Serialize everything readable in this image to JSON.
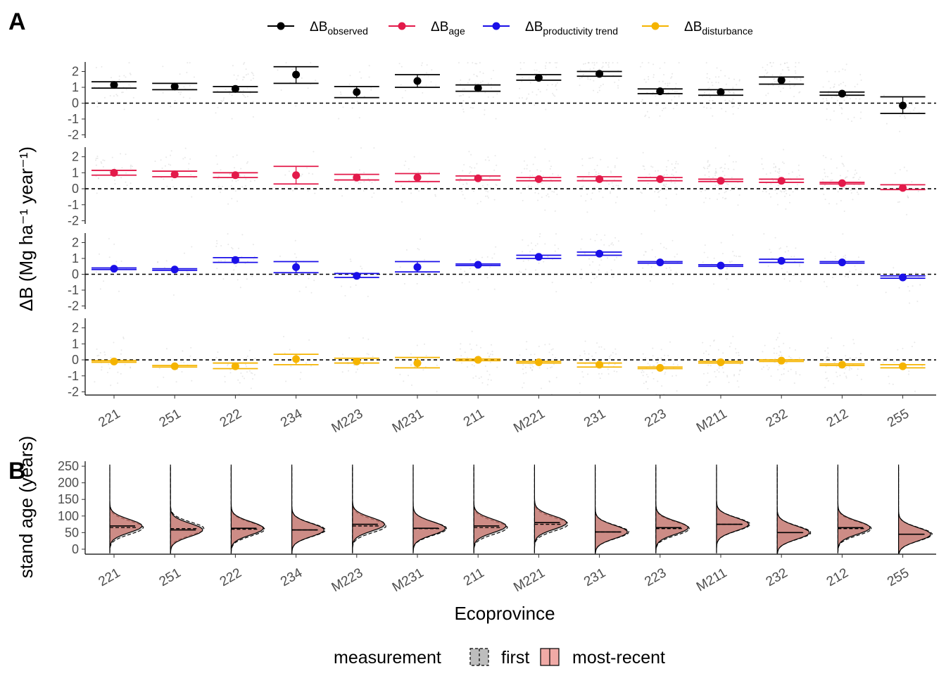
{
  "panel_a_label": "A",
  "panel_b_label": "B",
  "legend_a": [
    {
      "main": "ΔB",
      "sub": "observed",
      "color": "#000000"
    },
    {
      "main": "ΔB",
      "sub": "age",
      "color": "#e31a4a"
    },
    {
      "main": "ΔB",
      "sub": "productivity trend",
      "color": "#1a0fe8"
    },
    {
      "main": "ΔB",
      "sub": "disturbance",
      "color": "#f5b400"
    }
  ],
  "legend_b": {
    "title": "measurement",
    "items": [
      {
        "label": "first",
        "fill": "#bdbdbd",
        "linestyle": "dashed"
      },
      {
        "label": "most-recent",
        "fill": "#f0aaa6",
        "linestyle": "solid"
      }
    ]
  },
  "chart_data": [
    {
      "type": "scatter",
      "panel": "A",
      "ylabel": "ΔB (Mg ha⁻¹ year⁻¹)",
      "categories": [
        "221",
        "251",
        "222",
        "234",
        "M223",
        "M231",
        "211",
        "M221",
        "231",
        "223",
        "M211",
        "232",
        "212",
        "255"
      ],
      "ylim": [
        -2.2,
        2.6
      ],
      "yticks": [
        -2,
        -1,
        0,
        1,
        2
      ],
      "reference_line": 0,
      "series": [
        {
          "name": "ΔB observed",
          "color": "#000000",
          "values": [
            1.15,
            1.05,
            0.9,
            1.8,
            0.7,
            1.4,
            0.95,
            1.6,
            1.85,
            0.75,
            0.7,
            1.45,
            0.6,
            -0.15
          ],
          "lower": [
            0.95,
            0.85,
            0.7,
            1.25,
            0.35,
            1.0,
            0.75,
            1.45,
            1.7,
            0.6,
            0.5,
            1.2,
            0.5,
            -0.65
          ],
          "upper": [
            1.35,
            1.25,
            1.05,
            2.3,
            1.05,
            1.8,
            1.15,
            1.8,
            2.0,
            0.9,
            0.85,
            1.65,
            0.7,
            0.4
          ]
        },
        {
          "name": "ΔB age",
          "color": "#e31a4a",
          "values": [
            1.0,
            0.9,
            0.85,
            0.85,
            0.7,
            0.7,
            0.65,
            0.6,
            0.6,
            0.6,
            0.5,
            0.5,
            0.35,
            0.05
          ],
          "lower": [
            0.85,
            0.75,
            0.7,
            0.3,
            0.55,
            0.45,
            0.55,
            0.5,
            0.5,
            0.5,
            0.45,
            0.4,
            0.3,
            -0.05
          ],
          "upper": [
            1.15,
            1.1,
            1.0,
            1.4,
            0.9,
            0.95,
            0.8,
            0.7,
            0.75,
            0.7,
            0.6,
            0.6,
            0.4,
            0.25
          ]
        },
        {
          "name": "ΔB productivity trend",
          "color": "#1a0fe8",
          "values": [
            0.35,
            0.3,
            0.9,
            0.45,
            -0.1,
            0.45,
            0.6,
            1.1,
            1.3,
            0.75,
            0.55,
            0.85,
            0.75,
            -0.2
          ],
          "lower": [
            0.3,
            0.25,
            0.75,
            0.1,
            -0.2,
            0.15,
            0.55,
            1.0,
            1.2,
            0.7,
            0.5,
            0.75,
            0.7,
            -0.25
          ],
          "upper": [
            0.4,
            0.35,
            1.05,
            0.8,
            0.05,
            0.8,
            0.65,
            1.2,
            1.4,
            0.8,
            0.6,
            0.95,
            0.8,
            -0.1
          ]
        },
        {
          "name": "ΔB disturbance",
          "color": "#f5b400",
          "values": [
            -0.1,
            -0.4,
            -0.4,
            0.05,
            -0.1,
            -0.2,
            0.0,
            -0.15,
            -0.3,
            -0.5,
            -0.15,
            -0.05,
            -0.3,
            -0.4
          ],
          "lower": [
            -0.15,
            -0.45,
            -0.55,
            -0.3,
            -0.2,
            -0.5,
            -0.05,
            -0.2,
            -0.45,
            -0.55,
            -0.2,
            -0.1,
            -0.35,
            -0.5
          ],
          "upper": [
            -0.05,
            -0.35,
            -0.2,
            0.35,
            0.1,
            0.15,
            0.05,
            -0.1,
            -0.2,
            -0.45,
            -0.1,
            0.0,
            -0.25,
            -0.3
          ]
        }
      ]
    },
    {
      "type": "area",
      "panel": "B",
      "xlabel": "Ecoprovince",
      "ylabel": "stand age (years)",
      "categories": [
        "221",
        "251",
        "222",
        "234",
        "M223",
        "M231",
        "211",
        "M221",
        "231",
        "223",
        "M211",
        "232",
        "212",
        "255"
      ],
      "ylim": [
        -15,
        265
      ],
      "yticks": [
        0,
        50,
        100,
        150,
        200,
        250
      ],
      "first_median": [
        65,
        62,
        60,
        58,
        70,
        62,
        65,
        75,
        52,
        62,
        75,
        50,
        62,
        45
      ],
      "most_recent_median": [
        70,
        58,
        63,
        58,
        75,
        63,
        70,
        80,
        52,
        65,
        75,
        50,
        65,
        45
      ]
    }
  ]
}
